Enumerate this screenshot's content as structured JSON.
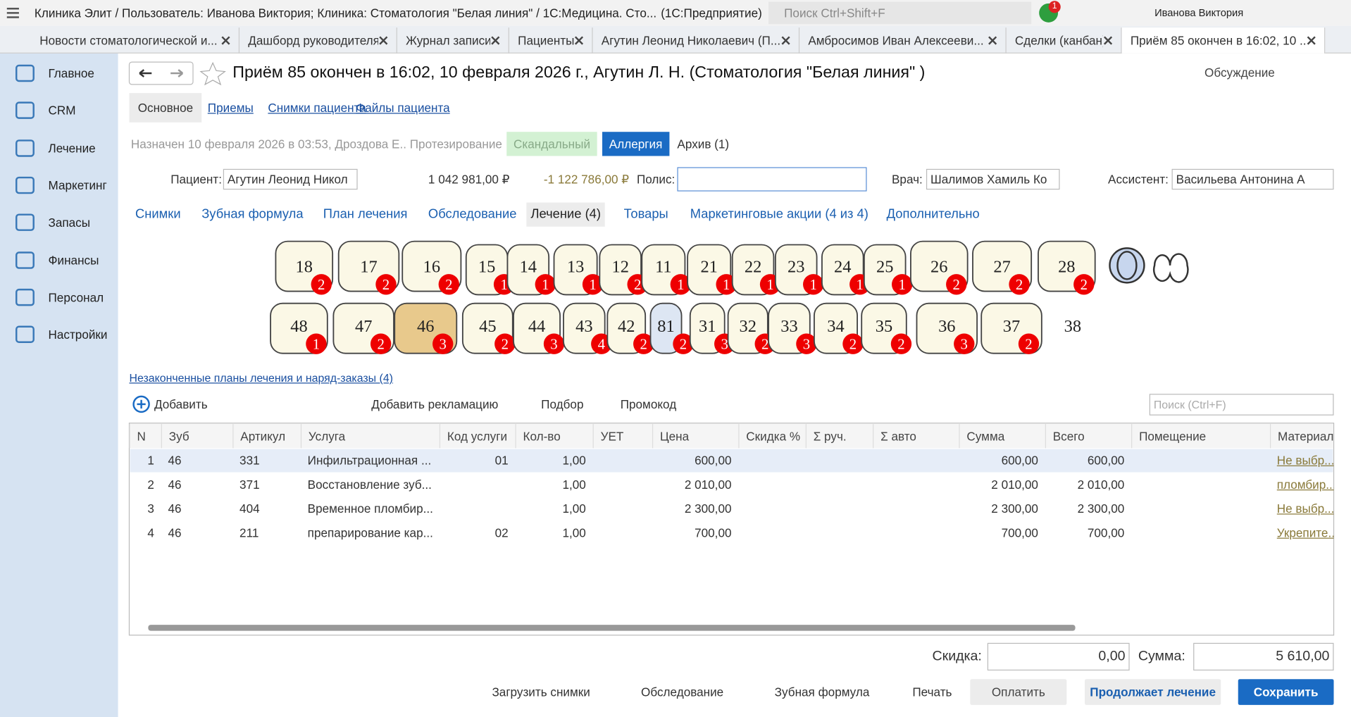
{
  "window": {
    "title": "Клиника Элит / Пользователь: Иванова Виктория; Клиника: Стоматология \"Белая линия\"  / 1С:Медицина. Сто...",
    "app": "(1С:Предприятие)",
    "search": "Поиск Ctrl+Shift+F",
    "badge": "1",
    "user": "Иванова Виктория"
  },
  "tabs": [
    "Новости стоматологической и...",
    "Дашборд руководителя",
    "Журнал записи",
    "Пациенты",
    "Агутин Леонид Николаевич (П...",
    "Амбросимов Иван Алексееви...",
    "Сделки (канбан)",
    "Приём 85 окончен в 16:02, 10 ..."
  ],
  "sidebar": [
    "Главное",
    "CRM",
    "Лечение",
    "Маркетинг",
    "Запасы",
    "Финансы",
    "Персонал",
    "Настройки"
  ],
  "form": {
    "title": "Приём 85 окончен в 16:02, 10 февраля 2026 г., Агутин Л. Н. (Стоматология \"Белая линия\" )",
    "discuss": "Обсуждение",
    "top_tabs": [
      "Основное",
      "Приемы",
      "Снимки пациента",
      "Файлы пациента"
    ],
    "assigned": "Назначен 10 февраля 2026  в 03:53, Дроздова Е.. Протезирование",
    "tags": [
      "Скандальный",
      "Аллергия",
      "Архив (1)"
    ],
    "patient_label": "Пациент:",
    "patient": "Агутин Леонид Никол",
    "balance": "1 042 981,00 ₽",
    "debt": "-1 122 786,00 ₽",
    "policy_label": "Полис:",
    "doctor_label": "Врач:",
    "doctor": "Шалимов Хамиль Ко",
    "assistant_label": "Ассистент:",
    "assistant": "Васильева Антонина А",
    "section_tabs": [
      "Снимки",
      "Зубная формула",
      "План лечения",
      "Обследование",
      "Лечение (4)",
      "Товары",
      "Маркетинговые акции (4 из 4)",
      "Дополнительно"
    ]
  },
  "teeth": {
    "upper": [
      {
        "num": "18",
        "count": "2"
      },
      {
        "num": "17",
        "count": "2"
      },
      {
        "num": "16",
        "count": "2"
      },
      {
        "num": "15",
        "count": "1"
      },
      {
        "num": "14",
        "count": "1"
      },
      {
        "num": "13",
        "count": "1"
      },
      {
        "num": "12",
        "count": "2"
      },
      {
        "num": "11",
        "count": "1"
      },
      {
        "num": "21",
        "count": "1"
      },
      {
        "num": "22",
        "count": "1"
      },
      {
        "num": "23",
        "count": "1"
      },
      {
        "num": "24",
        "count": "1"
      },
      {
        "num": "25",
        "count": "1"
      },
      {
        "num": "26",
        "count": "2"
      },
      {
        "num": "27",
        "count": "2"
      },
      {
        "num": "28",
        "count": "2"
      }
    ],
    "lower": [
      {
        "num": "48",
        "count": "1"
      },
      {
        "num": "47",
        "count": "2"
      },
      {
        "num": "46",
        "count": "3"
      },
      {
        "num": "45",
        "count": "2"
      },
      {
        "num": "44",
        "count": "3"
      },
      {
        "num": "43",
        "count": "4"
      },
      {
        "num": "42",
        "count": "2"
      },
      {
        "num": "81",
        "count": "2"
      },
      {
        "num": "31",
        "count": "3"
      },
      {
        "num": "32",
        "count": "2"
      },
      {
        "num": "33",
        "count": "3"
      },
      {
        "num": "34",
        "count": "2"
      },
      {
        "num": "35",
        "count": "2"
      },
      {
        "num": "36",
        "count": "3"
      },
      {
        "num": "37",
        "count": "2"
      },
      {
        "num": "38",
        "count": null
      }
    ]
  },
  "plans_link": "Незаконченные планы лечения и наряд-заказы (4)",
  "toolbar": {
    "add": "Добавить",
    "claim": "Добавить рекламацию",
    "pick": "Подбор",
    "promo": "Промокод",
    "search": "Поиск (Ctrl+F)"
  },
  "table": {
    "columns": [
      "N",
      "Зуб",
      "Артикул",
      "Услуга",
      "Код услуги",
      "Кол-во",
      "УЕТ",
      "Цена",
      "Скидка %",
      "Σ руч.",
      "Σ авто",
      "Сумма",
      "Всего",
      "Помещение",
      "Материал"
    ],
    "rows": [
      [
        "1",
        "46",
        "331",
        "Инфильтрационная ...",
        "01",
        "1,00",
        null,
        "600,00",
        null,
        null,
        null,
        "600,00",
        "600,00",
        null,
        "Не выбр..."
      ],
      [
        "2",
        "46",
        "371",
        "Восстановление зуб...",
        null,
        "1,00",
        null,
        "2 010,00",
        null,
        null,
        null,
        "2 010,00",
        "2 010,00",
        null,
        "пломбир..."
      ],
      [
        "3",
        "46",
        "404",
        "Временное пломбир...",
        null,
        "1,00",
        null,
        "2 300,00",
        null,
        null,
        null,
        "2 300,00",
        "2 300,00",
        null,
        "Не выбр..."
      ],
      [
        "4",
        "46",
        "211",
        "препарирование кар...",
        "02",
        "1,00",
        null,
        "700,00",
        null,
        null,
        null,
        "700,00",
        "700,00",
        null,
        "Укрепите..."
      ]
    ]
  },
  "totals": {
    "discount_label": "Скидка:",
    "discount": "0,00",
    "sum_label": "Сумма:",
    "sum": "5 610,00"
  },
  "footer": {
    "upload": "Загрузить снимки",
    "exam": "Обследование",
    "formula": "Зубная формула",
    "print": "Печать",
    "pay": "Оплатить",
    "continue": "Продолжает лечение",
    "save": "Сохранить"
  }
}
